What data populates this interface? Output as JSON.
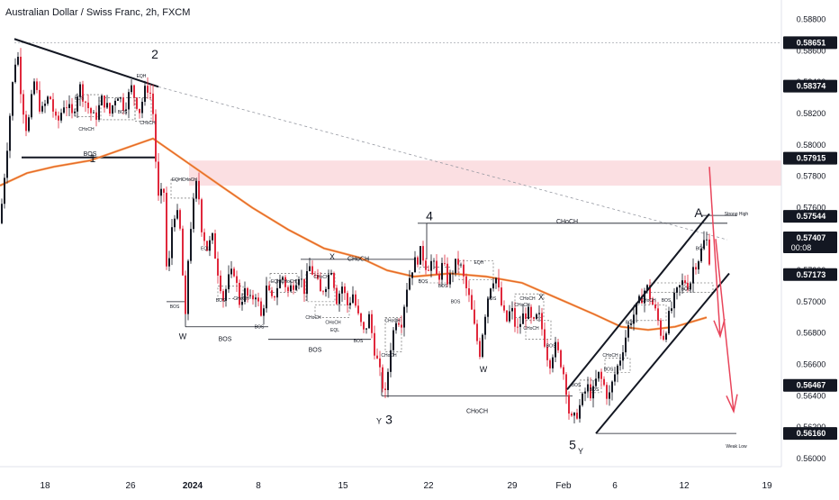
{
  "title": "Australian Dollar / Swiss Franc, 2h, FXCM",
  "colors": {
    "up": "#131722",
    "down": "#e0283c",
    "ema": "#f7a35c",
    "ema_dark": "#e05a20",
    "zone": "#f9d1d6",
    "trend": "#131722",
    "arrow": "#e8455b"
  },
  "chart_data": {
    "type": "candlestick",
    "symbol": "AUD/CHF",
    "timeframe": "2h",
    "ylim": [
      0.56,
      0.5882
    ],
    "y_ticks": [
      "0.58800",
      "0.58600",
      "0.58400",
      "0.58200",
      "0.58000",
      "0.57800",
      "0.57600",
      "0.57400",
      "0.57200",
      "0.57000",
      "0.56800",
      "0.56600",
      "0.56400",
      "0.56200",
      "0.56000"
    ],
    "x_ticks": [
      "18",
      "26",
      "2024",
      "8",
      "15",
      "22",
      "29",
      "Feb",
      "6",
      "12",
      "19"
    ],
    "price_labels": [
      {
        "text": "0.58651",
        "value": 0.58651
      },
      {
        "text": "0.58374",
        "value": 0.58374
      },
      {
        "text": "0.57915",
        "value": 0.57915
      },
      {
        "text": "0.57544",
        "value": 0.57544
      },
      {
        "text": "0.57407",
        "value": 0.57407,
        "sub": "00:08"
      },
      {
        "text": "0.57173",
        "value": 0.57173
      },
      {
        "text": "0.56467",
        "value": 0.56467
      },
      {
        "text": "0.56160",
        "value": 0.5616
      }
    ],
    "supply_zone": [
      0.5774,
      0.579
    ],
    "price_path": [
      [
        0,
        0.575
      ],
      [
        8,
        0.58
      ],
      [
        15,
        0.5845
      ],
      [
        19,
        0.5862
      ],
      [
        24,
        0.583
      ],
      [
        30,
        0.5808
      ],
      [
        38,
        0.584
      ],
      [
        46,
        0.582
      ],
      [
        55,
        0.5832
      ],
      [
        63,
        0.5812
      ],
      [
        72,
        0.5828
      ],
      [
        80,
        0.5818
      ],
      [
        88,
        0.5838
      ],
      [
        96,
        0.5826
      ],
      [
        105,
        0.5816
      ],
      [
        114,
        0.583
      ],
      [
        122,
        0.582
      ],
      [
        130,
        0.5834
      ],
      [
        138,
        0.5824
      ],
      [
        146,
        0.5836
      ],
      [
        155,
        0.5822
      ],
      [
        163,
        0.5838
      ],
      [
        169,
        0.583
      ],
      [
        173,
        0.579
      ],
      [
        176,
        0.5765
      ],
      [
        182,
        0.577
      ],
      [
        186,
        0.5706
      ],
      [
        190,
        0.5745
      ],
      [
        195,
        0.576
      ],
      [
        200,
        0.5745
      ],
      [
        206,
        0.5688
      ],
      [
        210,
        0.574
      ],
      [
        215,
        0.5762
      ],
      [
        219,
        0.5778
      ],
      [
        224,
        0.5748
      ],
      [
        230,
        0.5734
      ],
      [
        236,
        0.574
      ],
      [
        242,
        0.572
      ],
      [
        248,
        0.5702
      ],
      [
        254,
        0.5714
      ],
      [
        260,
        0.572
      ],
      [
        266,
        0.57
      ],
      [
        272,
        0.5706
      ],
      [
        278,
        0.57
      ],
      [
        284,
        0.5706
      ],
      [
        290,
        0.569
      ],
      [
        296,
        0.5708
      ],
      [
        302,
        0.57
      ],
      [
        308,
        0.571
      ],
      [
        314,
        0.5716
      ],
      [
        320,
        0.5706
      ],
      [
        326,
        0.5712
      ],
      [
        332,
        0.5718
      ],
      [
        338,
        0.5708
      ],
      [
        344,
        0.5722
      ],
      [
        350,
        0.5716
      ],
      [
        356,
        0.5705
      ],
      [
        362,
        0.5712
      ],
      [
        368,
        0.5722
      ],
      [
        374,
        0.5702
      ],
      [
        380,
        0.571
      ],
      [
        386,
        0.5698
      ],
      [
        392,
        0.5705
      ],
      [
        398,
        0.569
      ],
      [
        404,
        0.568
      ],
      [
        410,
        0.569
      ],
      [
        416,
        0.567
      ],
      [
        422,
        0.5654
      ],
      [
        428,
        0.564
      ],
      [
        434,
        0.5672
      ],
      [
        440,
        0.569
      ],
      [
        446,
        0.5688
      ],
      [
        452,
        0.571
      ],
      [
        458,
        0.5722
      ],
      [
        464,
        0.5728
      ],
      [
        468,
        0.5732
      ],
      [
        474,
        0.5722
      ],
      [
        480,
        0.5726
      ],
      [
        486,
        0.5714
      ],
      [
        492,
        0.5724
      ],
      [
        498,
        0.5712
      ],
      [
        504,
        0.5722
      ],
      [
        510,
        0.5726
      ],
      [
        516,
        0.5712
      ],
      [
        522,
        0.57
      ],
      [
        528,
        0.568
      ],
      [
        533,
        0.5668
      ],
      [
        538,
        0.569
      ],
      [
        544,
        0.571
      ],
      [
        550,
        0.5718
      ],
      [
        556,
        0.57
      ],
      [
        562,
        0.5686
      ],
      [
        568,
        0.5696
      ],
      [
        574,
        0.568
      ],
      [
        580,
        0.569
      ],
      [
        586,
        0.5694
      ],
      [
        592,
        0.5684
      ],
      [
        598,
        0.5692
      ],
      [
        604,
        0.5678
      ],
      [
        610,
        0.566
      ],
      [
        616,
        0.5672
      ],
      [
        622,
        0.5664
      ],
      [
        628,
        0.565
      ],
      [
        632,
        0.563
      ],
      [
        636,
        0.5622
      ],
      [
        640,
        0.5628
      ],
      [
        646,
        0.5636
      ],
      [
        652,
        0.5646
      ],
      [
        658,
        0.564
      ],
      [
        664,
        0.5654
      ],
      [
        670,
        0.5648
      ],
      [
        676,
        0.5638
      ],
      [
        682,
        0.5652
      ],
      [
        688,
        0.5662
      ],
      [
        694,
        0.5676
      ],
      [
        700,
        0.5688
      ],
      [
        706,
        0.5694
      ],
      [
        712,
        0.5702
      ],
      [
        718,
        0.571
      ],
      [
        724,
        0.57
      ],
      [
        730,
        0.569
      ],
      [
        736,
        0.5676
      ],
      [
        742,
        0.5688
      ],
      [
        748,
        0.57
      ],
      [
        754,
        0.5708
      ],
      [
        760,
        0.5714
      ],
      [
        766,
        0.571
      ],
      [
        770,
        0.5722
      ],
      [
        776,
        0.5728
      ],
      [
        780,
        0.5734
      ],
      [
        784,
        0.5742
      ],
      [
        788,
        0.5728
      ]
    ],
    "ema_path": [
      [
        0,
        0.5774
      ],
      [
        30,
        0.5782
      ],
      [
        60,
        0.5786
      ],
      [
        100,
        0.579
      ],
      [
        140,
        0.5798
      ],
      [
        170,
        0.5804
      ],
      [
        200,
        0.5792
      ],
      [
        240,
        0.5776
      ],
      [
        280,
        0.576
      ],
      [
        320,
        0.5746
      ],
      [
        360,
        0.5734
      ],
      [
        400,
        0.5728
      ],
      [
        430,
        0.572
      ],
      [
        460,
        0.5716
      ],
      [
        500,
        0.5718
      ],
      [
        540,
        0.5716
      ],
      [
        580,
        0.5712
      ],
      [
        620,
        0.5702
      ],
      [
        660,
        0.5692
      ],
      [
        690,
        0.5684
      ],
      [
        720,
        0.5682
      ],
      [
        750,
        0.5684
      ],
      [
        785,
        0.569
      ]
    ],
    "annotations": [
      {
        "text": "2",
        "x": 172,
        "y": 0.5855,
        "size": 14
      },
      {
        "text": "1",
        "x": 103,
        "y": 0.5789,
        "size": 12
      },
      {
        "text": "4",
        "x": 477,
        "y": 0.5752,
        "size": 14
      },
      {
        "text": "3",
        "x": 432,
        "y": 0.5622,
        "size": 14
      },
      {
        "text": "Y",
        "x": 421,
        "y": 0.5622,
        "size": 9
      },
      {
        "text": "A",
        "x": 776,
        "y": 0.5754,
        "size": 14
      },
      {
        "text": "5",
        "x": 636,
        "y": 0.5606,
        "size": 14
      },
      {
        "text": "Y",
        "x": 645,
        "y": 0.5603,
        "size": 9
      },
      {
        "text": "W",
        "x": 203,
        "y": 0.5676,
        "size": 9
      },
      {
        "text": "W",
        "x": 537,
        "y": 0.5655,
        "size": 9
      },
      {
        "text": "X",
        "x": 369,
        "y": 0.5727,
        "size": 9
      },
      {
        "text": "X",
        "x": 601,
        "y": 0.5701,
        "size": 9
      },
      {
        "text": "BOS",
        "x": 100,
        "y": 0.5793,
        "size": 7
      },
      {
        "text": "BOS",
        "x": 250,
        "y": 0.5675,
        "size": 7
      },
      {
        "text": "BOS",
        "x": 350,
        "y": 0.5668,
        "size": 7
      },
      {
        "text": "CHoCH",
        "x": 398,
        "y": 0.5726,
        "size": 7
      },
      {
        "text": "CHoCH",
        "x": 630,
        "y": 0.575,
        "size": 7
      },
      {
        "text": "CHoCH",
        "x": 530,
        "y": 0.5629,
        "size": 7
      },
      {
        "text": "Strong High",
        "x": 818,
        "y": 0.5755,
        "size": 5
      },
      {
        "text": "Weak Low",
        "x": 818,
        "y": 0.5607,
        "size": 5
      },
      {
        "text": "EQH",
        "x": 157,
        "y": 0.5843,
        "size": 5
      },
      {
        "text": "EQH",
        "x": 532,
        "y": 0.5724,
        "size": 5
      },
      {
        "text": "BOS",
        "x": 88,
        "y": 0.5829,
        "size": 5
      },
      {
        "text": "CHoCH",
        "x": 96,
        "y": 0.5809,
        "size": 5
      },
      {
        "text": "BOS",
        "x": 136,
        "y": 0.582,
        "size": 5
      },
      {
        "text": "CHoCH",
        "x": 164,
        "y": 0.5813,
        "size": 5
      },
      {
        "text": "EQHCHoCH",
        "x": 205,
        "y": 0.5777,
        "size": 5
      },
      {
        "text": "EQL",
        "x": 228,
        "y": 0.5733,
        "size": 5
      },
      {
        "text": "BOS",
        "x": 194,
        "y": 0.5696,
        "size": 5
      },
      {
        "text": "BOS",
        "x": 245,
        "y": 0.57,
        "size": 5
      },
      {
        "text": "CHoCH",
        "x": 268,
        "y": 0.5701,
        "size": 5
      },
      {
        "text": "BOS",
        "x": 288,
        "y": 0.5683,
        "size": 5
      },
      {
        "text": "EQHCHoCH",
        "x": 315,
        "y": 0.5712,
        "size": 5
      },
      {
        "text": "CHoCH",
        "x": 357,
        "y": 0.5715,
        "size": 5
      },
      {
        "text": "CHoCH",
        "x": 348,
        "y": 0.5689,
        "size": 5
      },
      {
        "text": "CHoCH",
        "x": 370,
        "y": 0.5686,
        "size": 5
      },
      {
        "text": "EQL",
        "x": 372,
        "y": 0.5681,
        "size": 5
      },
      {
        "text": "BOS",
        "x": 398,
        "y": 0.5674,
        "size": 5
      },
      {
        "text": "CHoCH",
        "x": 436,
        "y": 0.5687,
        "size": 5
      },
      {
        "text": "CHoCH",
        "x": 432,
        "y": 0.5665,
        "size": 5
      },
      {
        "text": "BOS",
        "x": 470,
        "y": 0.5712,
        "size": 5
      },
      {
        "text": "BOS",
        "x": 492,
        "y": 0.5709,
        "size": 5
      },
      {
        "text": "BOS",
        "x": 506,
        "y": 0.5699,
        "size": 5
      },
      {
        "text": "BOS",
        "x": 546,
        "y": 0.5701,
        "size": 5
      },
      {
        "text": "CHoCH",
        "x": 580,
        "y": 0.5697,
        "size": 5
      },
      {
        "text": "CHoCH",
        "x": 586,
        "y": 0.5701,
        "size": 5
      },
      {
        "text": "CHoCH",
        "x": 590,
        "y": 0.5682,
        "size": 5
      },
      {
        "text": "BOS",
        "x": 612,
        "y": 0.5671,
        "size": 5
      },
      {
        "text": "BOS",
        "x": 640,
        "y": 0.5646,
        "size": 5
      },
      {
        "text": "BOS",
        "x": 660,
        "y": 0.5643,
        "size": 5
      },
      {
        "text": "BOS",
        "x": 676,
        "y": 0.5656,
        "size": 5
      },
      {
        "text": "CHoCH",
        "x": 678,
        "y": 0.5665,
        "size": 5
      },
      {
        "text": "BOS",
        "x": 700,
        "y": 0.5686,
        "size": 5
      },
      {
        "text": "CHoCH",
        "x": 720,
        "y": 0.57,
        "size": 5
      },
      {
        "text": "BOS",
        "x": 740,
        "y": 0.57,
        "size": 5
      },
      {
        "text": "BOS",
        "x": 762,
        "y": 0.5707,
        "size": 5
      },
      {
        "text": "BOS",
        "x": 778,
        "y": 0.5733,
        "size": 5
      }
    ]
  }
}
